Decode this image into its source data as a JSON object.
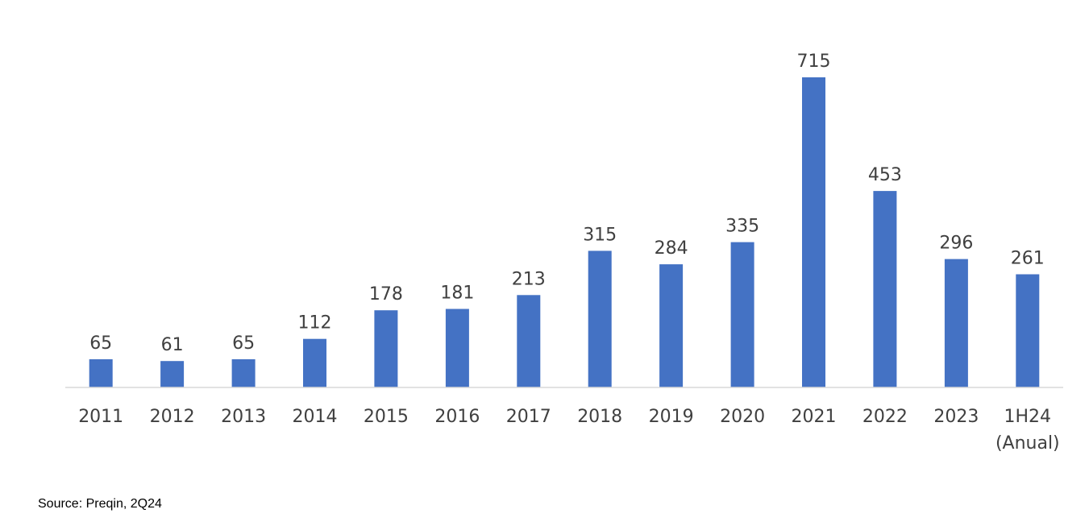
{
  "chart_data": {
    "type": "bar",
    "categories": [
      "2011",
      "2012",
      "2013",
      "2014",
      "2015",
      "2016",
      "2017",
      "2018",
      "2019",
      "2020",
      "2021",
      "2022",
      "2023",
      "1H24 (Anual)"
    ],
    "category_lines": [
      [
        "2011"
      ],
      [
        "2012"
      ],
      [
        "2013"
      ],
      [
        "2014"
      ],
      [
        "2015"
      ],
      [
        "2016"
      ],
      [
        "2017"
      ],
      [
        "2018"
      ],
      [
        "2019"
      ],
      [
        "2020"
      ],
      [
        "2021"
      ],
      [
        "2022"
      ],
      [
        "2023"
      ],
      [
        "1H24",
        "(Anual)"
      ]
    ],
    "values": [
      65,
      61,
      65,
      112,
      178,
      181,
      213,
      315,
      284,
      335,
      715,
      453,
      296,
      261
    ],
    "data_labels": [
      "65",
      "61",
      "65",
      "112",
      "178",
      "181",
      "213",
      "315",
      "284",
      "335",
      "715",
      "453",
      "296",
      "261"
    ],
    "title": "",
    "xlabel": "",
    "ylabel": "",
    "ylim": [
      0,
      715
    ],
    "grid": false,
    "legend": "none",
    "bar_color": "#4472C4",
    "axis_color": "#D9D9D9"
  },
  "footer": {
    "source": "Source: Preqin, 2Q24"
  }
}
